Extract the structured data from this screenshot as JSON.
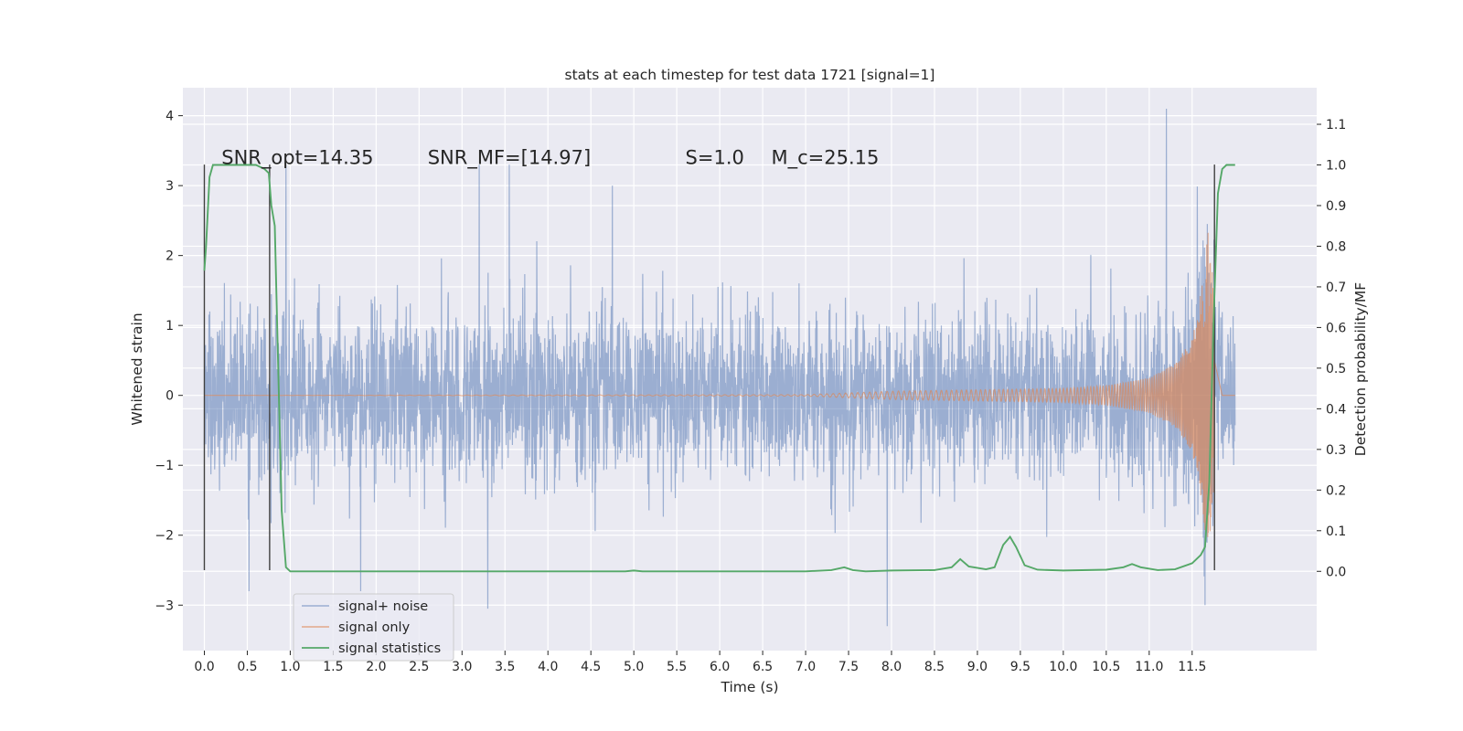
{
  "chart_data": {
    "type": "line",
    "title": "stats at each timestep for test data 1721 [signal=1]",
    "xlabel": "Time (s)",
    "ylabel": "Whitened strain",
    "y2label": "Detection probability/MF",
    "xlim": [
      -0.25,
      12.95
    ],
    "ylim": [
      -3.65,
      4.4
    ],
    "y2lim": [
      -0.195,
      1.19
    ],
    "xticks": [
      0.0,
      0.5,
      1.0,
      1.5,
      2.0,
      2.5,
      3.0,
      3.5,
      4.0,
      4.5,
      5.0,
      5.5,
      6.0,
      6.5,
      7.0,
      7.5,
      8.0,
      8.5,
      9.0,
      9.5,
      10.0,
      10.5,
      11.0,
      11.5
    ],
    "xtick_labels": [
      "0.0",
      "0.5",
      "1.0",
      "1.5",
      "2.0",
      "2.5",
      "3.0",
      "3.5",
      "4.0",
      "4.5",
      "5.0",
      "5.5",
      "6.0",
      "6.5",
      "7.0",
      "7.5",
      "8.0",
      "8.5",
      "9.0",
      "9.5",
      "10.0",
      "10.5",
      "11.0",
      "11.5"
    ],
    "yticks": [
      -3,
      -2,
      -1,
      0,
      1,
      2,
      3,
      4
    ],
    "ytick_labels": [
      "−3",
      "−2",
      "−1",
      "0",
      "1",
      "2",
      "3",
      "4"
    ],
    "y2ticks": [
      0.0,
      0.1,
      0.2,
      0.3,
      0.4,
      0.5,
      0.6,
      0.7,
      0.8,
      0.9,
      1.0,
      1.1
    ],
    "y2tick_labels": [
      "0.0",
      "0.1",
      "0.2",
      "0.3",
      "0.4",
      "0.5",
      "0.6",
      "0.7",
      "0.8",
      "0.9",
      "1.0",
      "1.1"
    ],
    "grid": true,
    "legend_position": "lower-left",
    "colors": {
      "background": "#eaeaf2",
      "grid": "#ffffff",
      "noise": "#4c72b0",
      "signal": "#dd8452",
      "stats": "#55a868",
      "marker": "#404040"
    },
    "annotations": [
      {
        "text": "SNR_opt=14.35",
        "x": 0.2,
        "y2": 1.0
      },
      {
        "text": "SNR_MF=[14.97]",
        "x": 2.6,
        "y2": 1.0
      },
      {
        "text": "S=1.0",
        "x": 5.6,
        "y2": 1.0
      },
      {
        "text": "M_c=25.15",
        "x": 6.6,
        "y2": 1.0
      }
    ],
    "vertical_markers": [
      {
        "x": 0.0,
        "y_from": -2.5,
        "y_to": 3.3
      },
      {
        "x": 0.76,
        "y_from": -2.5,
        "y_to": 3.3
      },
      {
        "x": 11.76,
        "y_from": -2.5,
        "y_to": 3.3
      }
    ],
    "series": [
      {
        "name": "signal+ noise",
        "axis": "left",
        "kind": "dense-noise",
        "x_range": [
          0.0,
          12.0
        ],
        "typical_band": [
          -1.6,
          1.6
        ],
        "peaks": [
          {
            "x": 3.2,
            "y": 3.3
          },
          {
            "x": 3.55,
            "y": 3.3
          },
          {
            "x": 4.75,
            "y": 3.0
          },
          {
            "x": 11.2,
            "y": 4.1
          },
          {
            "x": 11.65,
            "y": 4.0
          },
          {
            "x": 0.95,
            "y": 3.3
          }
        ],
        "troughs": [
          {
            "x": 0.52,
            "y": -2.8
          },
          {
            "x": 1.82,
            "y": -2.8
          },
          {
            "x": 3.3,
            "y": -3.05
          },
          {
            "x": 7.95,
            "y": -3.3
          },
          {
            "x": 11.65,
            "y": -3.0
          }
        ]
      },
      {
        "name": "signal only",
        "axis": "left",
        "kind": "chirp",
        "x_range": [
          0.0,
          12.0
        ],
        "envelope": [
          {
            "x": 0.0,
            "y": 0.0
          },
          {
            "x": 7.0,
            "y": 0.01
          },
          {
            "x": 8.0,
            "y": 0.06
          },
          {
            "x": 9.0,
            "y": 0.08
          },
          {
            "x": 10.0,
            "y": 0.1
          },
          {
            "x": 10.5,
            "y": 0.14
          },
          {
            "x": 11.0,
            "y": 0.25
          },
          {
            "x": 11.3,
            "y": 0.45
          },
          {
            "x": 11.5,
            "y": 0.8
          },
          {
            "x": 11.62,
            "y": 1.6
          },
          {
            "x": 11.7,
            "y": 2.5
          },
          {
            "x": 11.76,
            "y": 1.2
          },
          {
            "x": 11.85,
            "y": 0.0
          },
          {
            "x": 12.0,
            "y": 0.0
          }
        ]
      },
      {
        "name": "signal statistics",
        "axis": "right",
        "kind": "line",
        "x": [
          0.0,
          0.02,
          0.06,
          0.1,
          0.15,
          0.2,
          0.3,
          0.4,
          0.5,
          0.6,
          0.7,
          0.75,
          0.78,
          0.82,
          0.86,
          0.9,
          0.95,
          1.0,
          2.0,
          3.0,
          4.0,
          4.9,
          5.0,
          5.1,
          6.0,
          7.0,
          7.3,
          7.45,
          7.55,
          7.7,
          8.0,
          8.5,
          8.7,
          8.8,
          8.9,
          9.1,
          9.2,
          9.3,
          9.38,
          9.45,
          9.55,
          9.7,
          10.0,
          10.5,
          10.7,
          10.8,
          10.9,
          11.1,
          11.3,
          11.5,
          11.6,
          11.65,
          11.7,
          11.75,
          11.8,
          11.85,
          11.9,
          11.95,
          12.0
        ],
        "values": [
          0.74,
          0.8,
          0.97,
          1.0,
          1.0,
          1.0,
          1.0,
          1.0,
          1.0,
          1.0,
          0.99,
          0.98,
          0.9,
          0.85,
          0.5,
          0.15,
          0.01,
          0.0,
          0.0,
          0.0,
          0.0,
          0.0,
          0.002,
          0.0,
          0.0,
          0.0,
          0.003,
          0.01,
          0.003,
          0.0,
          0.002,
          0.003,
          0.01,
          0.03,
          0.012,
          0.005,
          0.01,
          0.065,
          0.085,
          0.06,
          0.015,
          0.004,
          0.002,
          0.004,
          0.01,
          0.018,
          0.01,
          0.003,
          0.005,
          0.02,
          0.04,
          0.06,
          0.22,
          0.62,
          0.93,
          0.99,
          1.0,
          1.0,
          1.0
        ]
      }
    ]
  }
}
